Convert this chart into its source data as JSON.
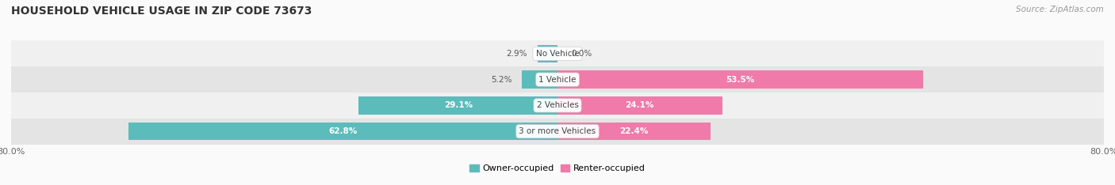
{
  "title": "HOUSEHOLD VEHICLE USAGE IN ZIP CODE 73673",
  "source": "Source: ZipAtlas.com",
  "categories": [
    "No Vehicle",
    "1 Vehicle",
    "2 Vehicles",
    "3 or more Vehicles"
  ],
  "owner_values": [
    2.9,
    5.2,
    29.1,
    62.8
  ],
  "renter_values": [
    0.0,
    53.5,
    24.1,
    22.4
  ],
  "owner_color": "#5bbcbb",
  "renter_color": "#f07aaa",
  "axis_min": -80.0,
  "axis_max": 80.0,
  "title_fontsize": 10,
  "source_fontsize": 7.5,
  "figsize": [
    14.06,
    2.34
  ],
  "dpi": 100,
  "row_bg_light": "#f0f0f0",
  "row_bg_dark": "#e4e4e4",
  "bar_height": 0.68
}
